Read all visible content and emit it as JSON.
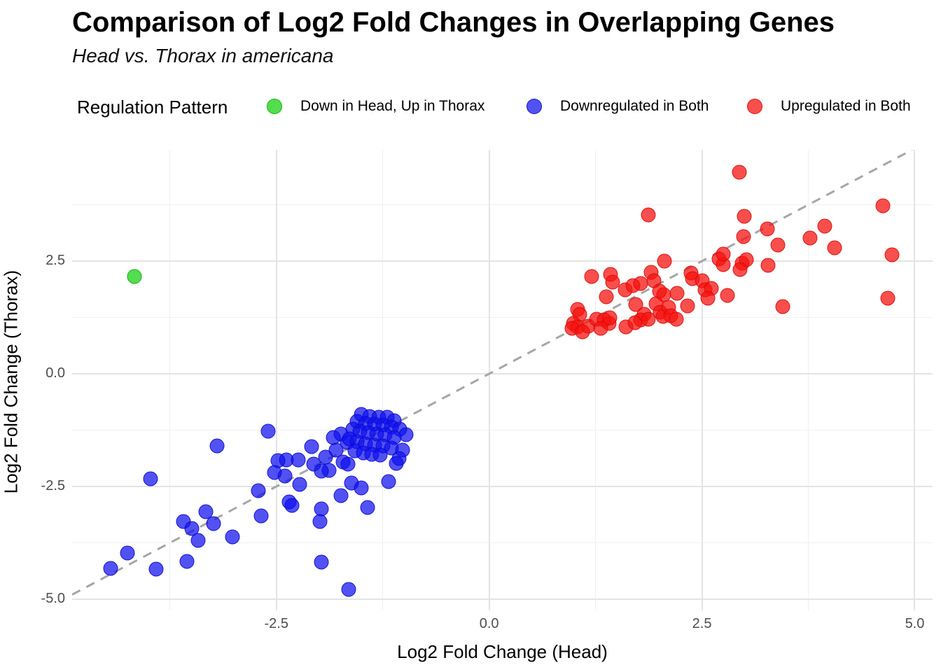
{
  "title": "Comparison of Log2 Fold Changes in Overlapping Genes",
  "subtitle": "Head vs. Thorax in americana",
  "legend": {
    "title": "Regulation Pattern",
    "position": "top"
  },
  "chart_data": {
    "type": "scatter",
    "title": "Comparison of Log2 Fold Changes in Overlapping Genes",
    "subtitle": "Head vs. Thorax in americana",
    "xlabel": "Log2 Fold Change (Head)",
    "ylabel": "Log2 Fold Change (Thorax)",
    "xlim": [
      -4.9,
      5.21
    ],
    "ylim": [
      -5.25,
      4.97
    ],
    "grid": true,
    "x_ticks": [
      {
        "v": -2.5,
        "label": "-2.5"
      },
      {
        "v": 0,
        "label": "0.0"
      },
      {
        "v": 2.5,
        "label": "2.5"
      },
      {
        "v": 5,
        "label": "5.0"
      }
    ],
    "y_ticks": [
      {
        "v": 2.5,
        "label": "2.5"
      },
      {
        "v": 0,
        "label": "0.0"
      },
      {
        "v": -2.5,
        "label": "-2.5"
      },
      {
        "v": -5,
        "label": "-5.0"
      }
    ],
    "x_minor": [
      -3.75,
      -1.25,
      1.25,
      3.75
    ],
    "y_minor": [
      -3.75,
      -1.25,
      1.25,
      3.75
    ],
    "identity_line": {
      "style": "dashed",
      "color": "#a6a6a6",
      "from": [
        -4.9,
        -4.9
      ],
      "to": [
        4.97,
        4.97
      ]
    },
    "series": [
      {
        "name": "Down in Head, Up in Thorax",
        "fill": "rgba(25,208,18,0.74)",
        "stroke": "rgba(0,175,0,0.85)",
        "points": [
          [
            -4.17,
            2.16
          ]
        ]
      },
      {
        "name": "Downregulated in Both",
        "fill": "rgba(15,15,238,0.72)",
        "stroke": "rgba(10,10,205,0.85)",
        "points": [
          [
            -3.98,
            -2.33
          ],
          [
            -3.2,
            -1.6
          ],
          [
            -2.6,
            -1.28
          ],
          [
            -2.71,
            -2.6
          ],
          [
            -2.68,
            -3.15
          ],
          [
            -3.33,
            -3.06
          ],
          [
            -3.59,
            -3.28
          ],
          [
            -3.49,
            -3.43
          ],
          [
            -3.42,
            -3.7
          ],
          [
            -3.24,
            -3.32
          ],
          [
            -3.02,
            -3.62
          ],
          [
            -4.25,
            -3.98
          ],
          [
            -4.45,
            -4.32
          ],
          [
            -3.91,
            -4.33
          ],
          [
            -3.55,
            -4.16
          ],
          [
            -2.38,
            -1.91
          ],
          [
            -2.48,
            -1.93
          ],
          [
            -2.52,
            -2.19
          ],
          [
            -2.4,
            -2.27
          ],
          [
            -2.24,
            -1.91
          ],
          [
            -2.23,
            -2.45
          ],
          [
            -2.09,
            -1.62
          ],
          [
            -2.06,
            -2.0
          ],
          [
            -1.92,
            -1.85
          ],
          [
            -1.88,
            -2.14
          ],
          [
            -1.97,
            -2.16
          ],
          [
            -1.8,
            -1.69
          ],
          [
            -1.74,
            -1.34
          ],
          [
            -1.72,
            -1.96
          ],
          [
            -1.66,
            -2.0
          ],
          [
            -2.35,
            -2.84
          ],
          [
            -2.32,
            -2.92
          ],
          [
            -1.97,
            -3.0
          ],
          [
            -1.99,
            -3.28
          ],
          [
            -1.74,
            -2.7
          ],
          [
            -1.62,
            -2.42
          ],
          [
            -1.5,
            -2.53
          ],
          [
            -1.43,
            -2.97
          ],
          [
            -1.18,
            -2.39
          ],
          [
            -1.97,
            -4.18
          ],
          [
            -1.65,
            -4.79
          ],
          [
            -1.83,
            -1.41
          ],
          [
            -1.67,
            -1.52
          ],
          [
            -1.5,
            -0.9
          ],
          [
            -1.4,
            -0.94
          ],
          [
            -1.3,
            -0.96
          ],
          [
            -1.2,
            -0.97
          ],
          [
            -1.12,
            -1.04
          ],
          [
            -1.55,
            -1.06
          ],
          [
            -1.45,
            -1.1
          ],
          [
            -1.35,
            -1.12
          ],
          [
            -1.25,
            -1.14
          ],
          [
            -1.15,
            -1.18
          ],
          [
            -1.05,
            -1.22
          ],
          [
            -0.98,
            -1.35
          ],
          [
            -1.6,
            -1.22
          ],
          [
            -1.52,
            -1.27
          ],
          [
            -1.42,
            -1.3
          ],
          [
            -1.32,
            -1.33
          ],
          [
            -1.22,
            -1.35
          ],
          [
            -1.12,
            -1.42
          ],
          [
            -1.64,
            -1.45
          ],
          [
            -1.55,
            -1.5
          ],
          [
            -1.45,
            -1.55
          ],
          [
            -1.35,
            -1.58
          ],
          [
            -1.25,
            -1.6
          ],
          [
            -1.15,
            -1.64
          ],
          [
            -1.02,
            -1.7
          ],
          [
            -1.58,
            -1.71
          ],
          [
            -1.48,
            -1.75
          ],
          [
            -1.38,
            -1.78
          ],
          [
            -1.28,
            -1.8
          ],
          [
            -1.06,
            -1.88
          ],
          [
            -1.09,
            -1.99
          ]
        ]
      },
      {
        "name": "Upregulated in Both",
        "fill": "rgba(246,18,14,0.74)",
        "stroke": "rgba(215,10,10,0.85)",
        "points": [
          [
            1.2,
            2.16
          ],
          [
            1.43,
            2.2
          ],
          [
            1.45,
            2.03
          ],
          [
            1.9,
            2.25
          ],
          [
            1.94,
            2.07
          ],
          [
            2.06,
            2.5
          ],
          [
            2.37,
            2.23
          ],
          [
            2.39,
            2.11
          ],
          [
            2.5,
            2.07
          ],
          [
            2.7,
            2.54
          ],
          [
            2.75,
            2.42
          ],
          [
            2.97,
            2.45
          ],
          [
            1.6,
            1.87
          ],
          [
            1.69,
            1.95
          ],
          [
            1.78,
            2.0
          ],
          [
            2.0,
            1.84
          ],
          [
            2.05,
            1.76
          ],
          [
            2.21,
            1.79
          ],
          [
            2.54,
            1.87
          ],
          [
            2.61,
            1.9
          ],
          [
            2.57,
            1.67
          ],
          [
            2.8,
            1.74
          ],
          [
            1.38,
            1.71
          ],
          [
            1.04,
            1.43
          ],
          [
            1.06,
            1.32
          ],
          [
            0.99,
            1.12
          ],
          [
            1.04,
            1.04
          ],
          [
            1.16,
            1.06
          ],
          [
            1.26,
            1.21
          ],
          [
            1.35,
            1.2
          ],
          [
            1.41,
            1.12
          ],
          [
            1.31,
            1.01
          ],
          [
            1.42,
            1.25
          ],
          [
            1.72,
            1.53
          ],
          [
            1.82,
            1.32
          ],
          [
            1.78,
            1.2
          ],
          [
            1.87,
            1.21
          ],
          [
            1.96,
            1.56
          ],
          [
            2.01,
            1.37
          ],
          [
            2.04,
            1.28
          ],
          [
            2.11,
            1.48
          ],
          [
            2.13,
            1.29
          ],
          [
            2.2,
            1.21
          ],
          [
            2.33,
            1.51
          ],
          [
            1.61,
            1.04
          ],
          [
            1.71,
            1.14
          ],
          [
            0.97,
            1.01
          ],
          [
            1.1,
            0.93
          ],
          [
            2.94,
            4.48
          ],
          [
            1.87,
            3.52
          ],
          [
            3.0,
            3.5
          ],
          [
            3.27,
            3.22
          ],
          [
            2.99,
            3.05
          ],
          [
            3.39,
            2.86
          ],
          [
            3.77,
            3.02
          ],
          [
            3.94,
            3.28
          ],
          [
            4.06,
            2.8
          ],
          [
            4.63,
            3.72
          ],
          [
            4.73,
            2.64
          ],
          [
            3.02,
            2.53
          ],
          [
            2.95,
            2.31
          ],
          [
            3.28,
            2.41
          ],
          [
            4.68,
            1.68
          ],
          [
            3.45,
            1.49
          ],
          [
            2.75,
            2.66
          ]
        ]
      }
    ]
  }
}
